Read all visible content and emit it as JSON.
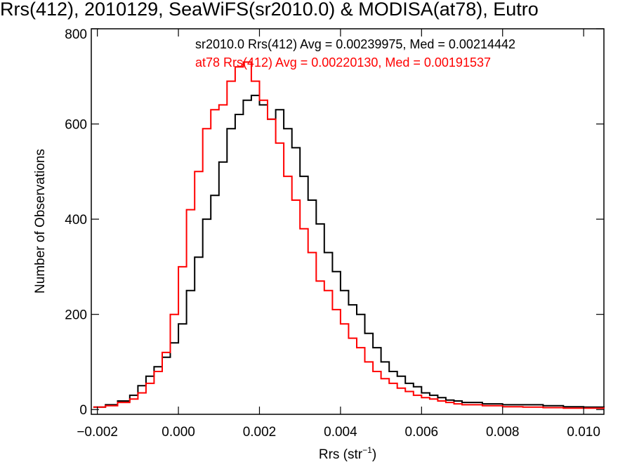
{
  "chart_data": {
    "type": "line",
    "title": "Rrs(412), 2010129, SeaWiFS(sr2010.0) & MODISA(at78), Eutro",
    "xlabel_main": "Rrs (str",
    "xlabel_sup": "−1",
    "xlabel_end": ")",
    "ylabel": "Number of Observations",
    "xlim": [
      -0.00215,
      0.0105
    ],
    "ylim": [
      -10,
      800
    ],
    "xticks": [
      -0.002,
      0.0,
      0.002,
      0.004,
      0.006,
      0.008,
      0.01
    ],
    "xtick_labels": [
      "−0.002",
      "0.000",
      "0.002",
      "0.004",
      "0.006",
      "0.008",
      "0.010"
    ],
    "yticks": [
      0,
      200,
      400,
      600,
      800
    ],
    "ytick_labels": [
      "0",
      "200",
      "400",
      "600",
      "800"
    ],
    "annotations": [
      "sr2010.0 Rrs(412) Avg = 0.00239975, Med = 0.00214442",
      "at78 Rrs(412) Avg = 0.00220130, Med = 0.00191537"
    ],
    "series": [
      {
        "color": "#000000",
        "x": [
          -0.0021,
          -0.0018,
          -0.0015,
          -0.0012,
          -0.001,
          -0.0008,
          -0.0006,
          -0.0004,
          -0.0002,
          0.0,
          0.0002,
          0.0004,
          0.0006,
          0.0008,
          0.001,
          0.0012,
          0.0014,
          0.0016,
          0.0018,
          0.002,
          0.0022,
          0.0024,
          0.0026,
          0.0028,
          0.003,
          0.0032,
          0.0034,
          0.0036,
          0.0038,
          0.004,
          0.0042,
          0.0044,
          0.0046,
          0.0048,
          0.005,
          0.0052,
          0.0054,
          0.0056,
          0.0058,
          0.006,
          0.0062,
          0.0064,
          0.0066,
          0.0068,
          0.007,
          0.0075,
          0.008,
          0.0085,
          0.009,
          0.0095,
          0.01,
          0.0105
        ],
        "y": [
          5,
          10,
          18,
          30,
          50,
          70,
          90,
          110,
          140,
          180,
          250,
          320,
          400,
          450,
          520,
          590,
          620,
          650,
          660,
          640,
          610,
          630,
          590,
          550,
          490,
          440,
          390,
          330,
          290,
          250,
          220,
          200,
          160,
          130,
          100,
          80,
          70,
          55,
          48,
          35,
          30,
          25,
          20,
          18,
          15,
          12,
          10,
          10,
          8,
          6,
          5,
          3
        ]
      },
      {
        "color": "#ff0000",
        "x": [
          -0.0021,
          -0.0018,
          -0.0015,
          -0.0012,
          -0.001,
          -0.0008,
          -0.0006,
          -0.0004,
          -0.0002,
          0.0,
          0.0002,
          0.0004,
          0.0006,
          0.0008,
          0.001,
          0.0012,
          0.0014,
          0.0016,
          0.0018,
          0.002,
          0.0022,
          0.0024,
          0.0026,
          0.0028,
          0.003,
          0.0032,
          0.0034,
          0.0036,
          0.0038,
          0.004,
          0.0042,
          0.0044,
          0.0046,
          0.0048,
          0.005,
          0.0052,
          0.0054,
          0.0056,
          0.0058,
          0.006,
          0.0062,
          0.0064,
          0.0066,
          0.0068,
          0.007,
          0.0075,
          0.008,
          0.0085,
          0.009,
          0.0095,
          0.01,
          0.0105
        ],
        "y": [
          5,
          8,
          15,
          22,
          35,
          55,
          80,
          120,
          200,
          300,
          420,
          500,
          590,
          630,
          640,
          690,
          720,
          730,
          690,
          650,
          610,
          560,
          490,
          440,
          380,
          330,
          270,
          250,
          210,
          180,
          150,
          130,
          100,
          80,
          65,
          55,
          45,
          38,
          30,
          25,
          22,
          18,
          15,
          12,
          10,
          8,
          6,
          5,
          4,
          3,
          3,
          2
        ]
      }
    ]
  }
}
